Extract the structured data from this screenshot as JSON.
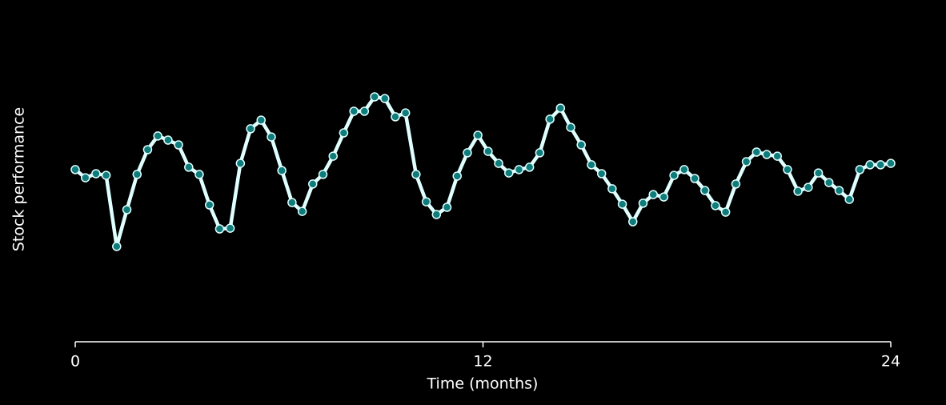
{
  "chart_data": {
    "type": "line",
    "xlabel": "Time (months)",
    "ylabel": "Stock performance",
    "x": [
      0,
      0.3,
      0.61,
      0.91,
      1.22,
      1.52,
      1.82,
      2.13,
      2.43,
      2.73,
      3.04,
      3.34,
      3.65,
      3.95,
      4.25,
      4.56,
      4.86,
      5.16,
      5.47,
      5.77,
      6.08,
      6.38,
      6.68,
      6.99,
      7.29,
      7.59,
      7.9,
      8.2,
      8.51,
      8.81,
      9.11,
      9.42,
      9.72,
      10.03,
      10.33,
      10.63,
      10.94,
      11.24,
      11.54,
      11.85,
      12.15,
      12.46,
      12.76,
      13.06,
      13.37,
      13.67,
      13.97,
      14.28,
      14.58,
      14.89,
      15.19,
      15.49,
      15.8,
      16.1,
      16.41,
      16.71,
      17.01,
      17.32,
      17.62,
      17.92,
      18.23,
      18.53,
      18.84,
      19.14,
      19.44,
      19.75,
      20.05,
      20.35,
      20.66,
      20.96,
      21.27,
      21.57,
      21.87,
      22.18,
      22.48,
      22.78,
      23.09,
      23.39,
      23.7,
      24
    ],
    "series": [
      {
        "color": "#e0ffff",
        "marker_color": "#0e7c7b",
        "values": [
          72.7,
          69.3,
          71,
          70.3,
          40.7,
          56,
          70.7,
          81,
          86.7,
          85,
          83,
          73.7,
          70.7,
          58,
          48,
          48.3,
          75.3,
          89.7,
          93.3,
          86.3,
          72.3,
          59,
          55.3,
          66.7,
          70.7,
          78.3,
          88,
          97,
          97,
          103,
          102.3,
          94.7,
          96.3,
          70.7,
          59.3,
          54,
          57,
          70,
          79.7,
          87,
          80.3,
          75.3,
          71.3,
          72.7,
          73.7,
          79.7,
          93.7,
          98.3,
          90.3,
          83,
          74.7,
          71,
          64.7,
          58.3,
          51,
          58.7,
          62.3,
          61.3,
          70.3,
          72.7,
          69,
          64,
          57.7,
          55,
          66.7,
          76,
          80,
          79,
          78.3,
          72.7,
          63.7,
          65.3,
          71.3,
          67.3,
          64,
          60.3,
          72.7,
          74.7,
          74.7,
          75.3
        ]
      }
    ],
    "xlim": [
      0,
      24
    ],
    "xticks": [
      0,
      12,
      24
    ],
    "ylim": [
      0,
      130
    ]
  }
}
